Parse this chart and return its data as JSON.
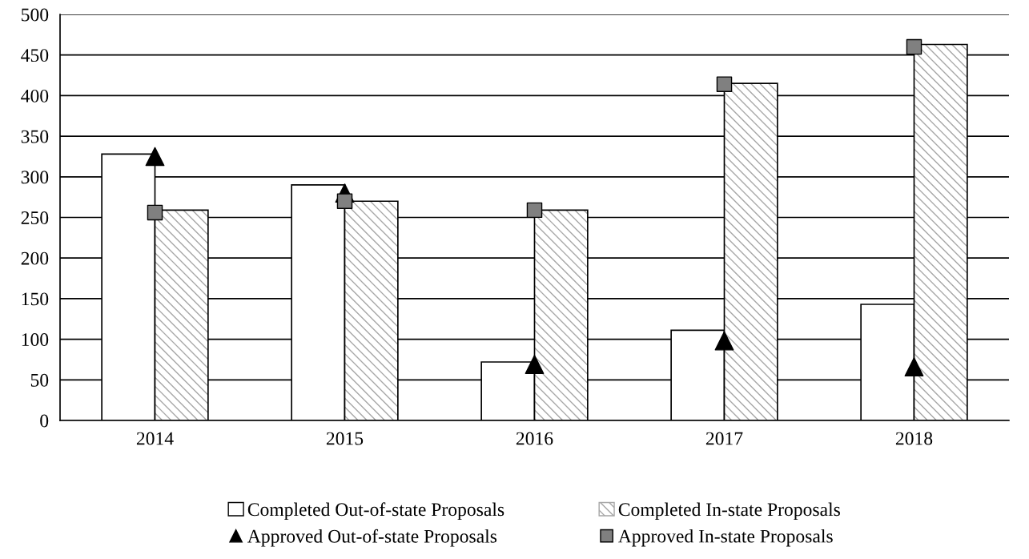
{
  "chart_data": {
    "type": "bar",
    "categories": [
      "2014",
      "2015",
      "2016",
      "2017",
      "2018"
    ],
    "series": [
      {
        "name": "Completed Out-of-state Proposals",
        "color": "#ffffff",
        "values": [
          328,
          290,
          72,
          111,
          143
        ]
      },
      {
        "name": "Completed In-state Proposals",
        "color": "#a6a6a6",
        "values": [
          259,
          270,
          259,
          415,
          463
        ]
      },
      {
        "name": "Approved Out-of-state Proposals",
        "type": "scatter",
        "marker": "triangle",
        "color": "#000000",
        "values": [
          325,
          280,
          69,
          98,
          66
        ]
      },
      {
        "name": "Approved In-state Proposals",
        "type": "scatter",
        "marker": "square",
        "color": "#808080",
        "values": [
          256,
          270,
          259,
          414,
          460
        ]
      }
    ],
    "ylim": [
      0,
      500
    ],
    "yticks": [
      0,
      50,
      100,
      150,
      200,
      250,
      300,
      350,
      400,
      450,
      500
    ],
    "grid": "y",
    "legend": "bottom"
  }
}
